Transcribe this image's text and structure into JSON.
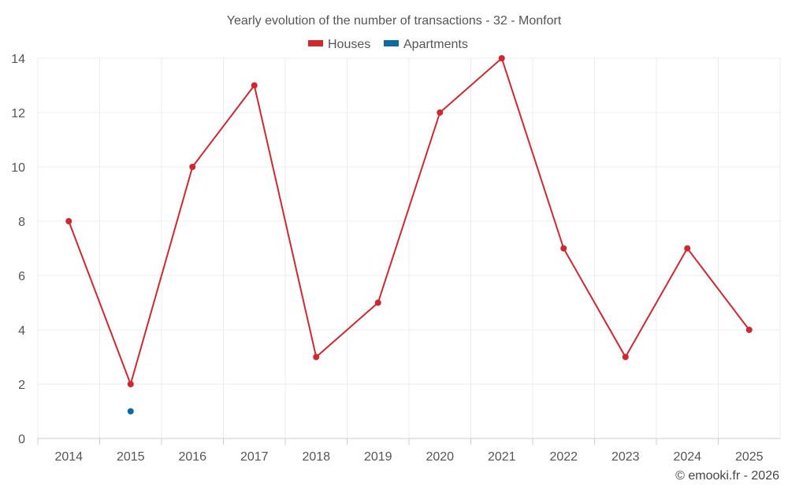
{
  "chart_data": {
    "type": "line",
    "title": "Yearly evolution of the number of transactions - 32 - Monfort",
    "xlabel": "",
    "ylabel": "",
    "categories": [
      "2014",
      "2015",
      "2016",
      "2017",
      "2018",
      "2019",
      "2020",
      "2021",
      "2022",
      "2023",
      "2024",
      "2025"
    ],
    "ylim": [
      0,
      14
    ],
    "yticks": [
      "0",
      "2",
      "4",
      "6",
      "8",
      "10",
      "12",
      "14"
    ],
    "grid": true,
    "legend_position": "top-center",
    "series": [
      {
        "name": "Houses",
        "color": "#d0282e",
        "values": [
          8,
          2,
          10,
          13,
          3,
          5,
          12,
          14,
          7,
          3,
          7,
          4
        ]
      },
      {
        "name": "Apartments",
        "color": "#0a6aa1",
        "values": [
          null,
          1,
          null,
          null,
          null,
          null,
          null,
          null,
          null,
          null,
          null,
          null
        ]
      }
    ],
    "credit": "© emooki.fr - 2026"
  }
}
